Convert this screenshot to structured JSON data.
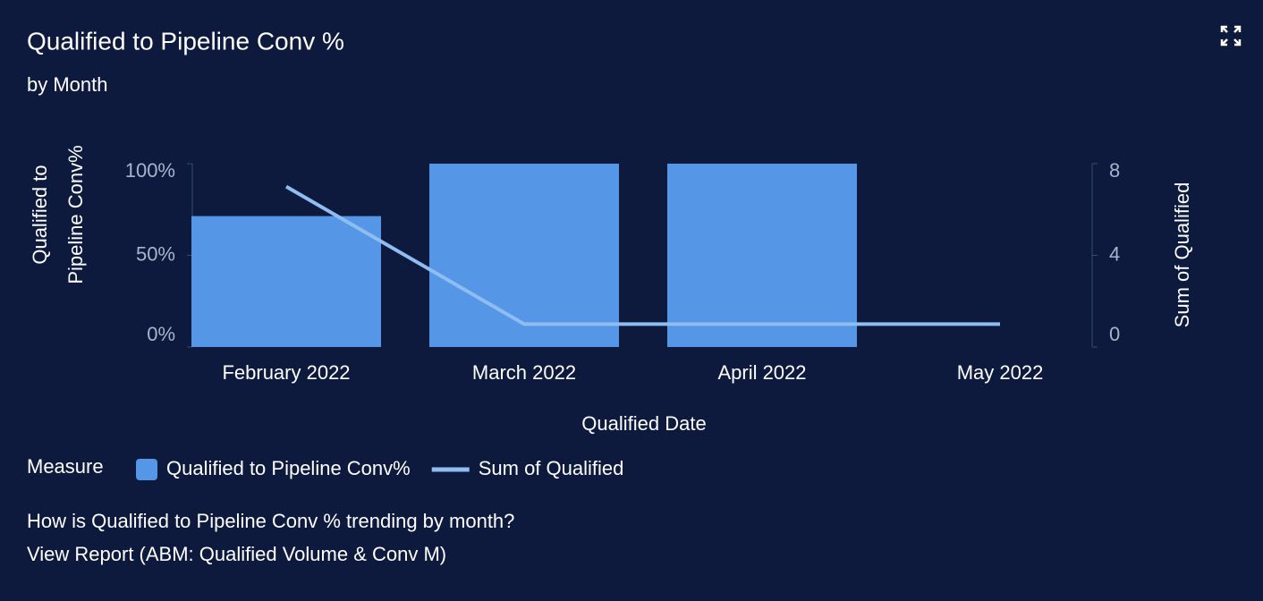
{
  "chart_data": {
    "type": "bar",
    "title": "Qualified to Pipeline Conv %",
    "subtitle": "by Month",
    "x_label": "Qualified Date",
    "y_label": "Qualified to Pipeline Conv%",
    "y2_label": "Sum of Qualified",
    "legend_title": "Measure",
    "categories": [
      "February 2022",
      "March 2022",
      "April 2022",
      "May 2022"
    ],
    "series": [
      {
        "name": "Qualified to Pipeline Conv%",
        "type": "bar",
        "color": "#5597e6",
        "values": [
          71.4,
          100,
          100,
          0
        ]
      },
      {
        "name": "Sum of Qualified",
        "type": "line",
        "axis": "y2",
        "color": "#8fbdf2",
        "values": [
          7,
          1,
          1,
          1
        ]
      }
    ],
    "ylim": [
      0,
      100
    ],
    "yticks": [
      {
        "value": 0,
        "label": "0%"
      },
      {
        "value": 50,
        "label": "50%"
      },
      {
        "value": 100,
        "label": "100%"
      }
    ],
    "y2lim": [
      0,
      8
    ],
    "y2ticks": [
      0,
      4,
      8
    ]
  },
  "footer": {
    "question": "How is Qualified to Pipeline Conv % trending by month?",
    "link": "View Report (ABM: Qualified Volume & Conv M)"
  }
}
